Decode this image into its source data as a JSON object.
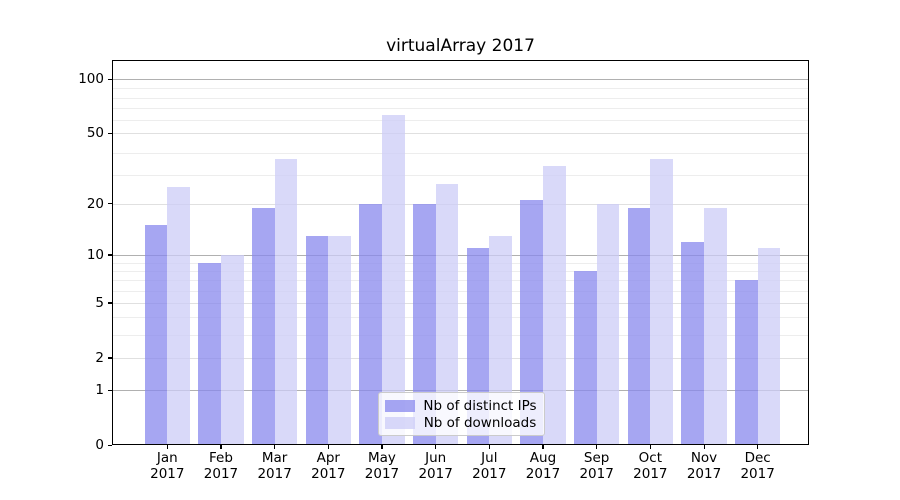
{
  "chart_data": {
    "type": "bar",
    "title": "virtualArray 2017",
    "year_label": "2017",
    "categories": [
      "Jan",
      "Feb",
      "Mar",
      "Apr",
      "May",
      "Jun",
      "Jul",
      "Aug",
      "Sep",
      "Oct",
      "Nov",
      "Dec"
    ],
    "series": [
      {
        "name": "Nb of distinct IPs",
        "color": "rgba(136,136,238,0.75)",
        "values": [
          15,
          9,
          19,
          13,
          20,
          20,
          11,
          21,
          8,
          19,
          12,
          7
        ]
      },
      {
        "name": "Nb of downloads",
        "color": "rgba(204,204,247,0.75)",
        "values": [
          25,
          10,
          36,
          13,
          63,
          26,
          13,
          33,
          20,
          36,
          19,
          11
        ]
      }
    ],
    "xlabel": "",
    "ylabel": "",
    "yscale": "log10(value+1)",
    "ylim": [
      0,
      128
    ],
    "yticks": [
      100,
      50,
      20,
      10,
      5,
      2,
      1,
      0
    ],
    "grid": true,
    "gridlines": {
      "major_values": [
        100,
        10,
        1
      ],
      "labeled_minor_values": [
        50,
        20,
        5,
        2
      ],
      "minor_values": [
        89,
        79,
        69,
        59,
        39,
        29,
        9,
        8,
        7,
        6,
        4,
        3
      ]
    },
    "legend_position": "lower center",
    "colors": {
      "axis": "#000000",
      "grid_major": "#b0b0b0",
      "grid_labeled": "#e0e0e0",
      "grid_minor": "#ededed",
      "text": "#000000"
    }
  }
}
